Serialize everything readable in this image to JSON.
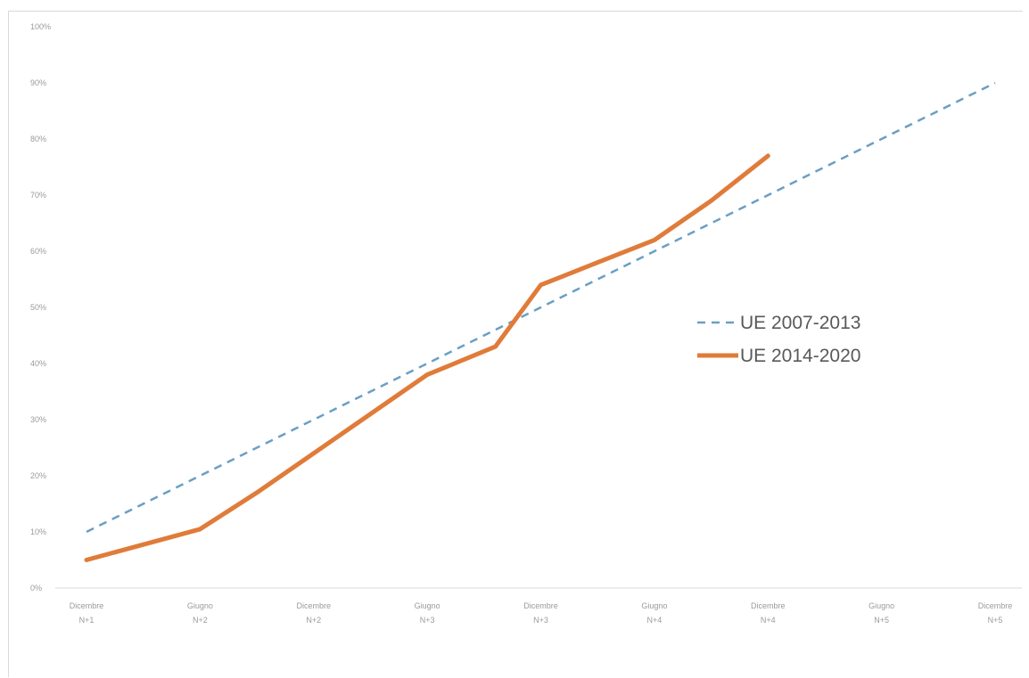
{
  "chart_data": {
    "type": "line",
    "categories": [
      [
        "Dicembre",
        "N+1"
      ],
      [
        "Giugno",
        "N+2"
      ],
      [
        "Dicembre",
        "N+2"
      ],
      [
        "Giugno",
        "N+3"
      ],
      [
        "Dicembre",
        "N+3"
      ],
      [
        "Giugno",
        "N+4"
      ],
      [
        "Dicembre",
        "N+4"
      ],
      [
        "Giugno",
        "N+5"
      ],
      [
        "Dicembre",
        "N+5"
      ]
    ],
    "y_ticks": [
      "0%",
      "10%",
      "20%",
      "30%",
      "40%",
      "50%",
      "60%",
      "70%",
      "80%",
      "90%",
      "100%"
    ],
    "ylim": [
      0,
      100
    ],
    "grid": false,
    "legend_position": "right",
    "series": [
      {
        "name": "UE 2007-2013",
        "color": "#6a9fc4",
        "style": "dashed",
        "points": [
          [
            0,
            10
          ],
          [
            1,
            20
          ],
          [
            2,
            30
          ],
          [
            3,
            40
          ],
          [
            4,
            50
          ],
          [
            5,
            60
          ],
          [
            6,
            70
          ],
          [
            7,
            80
          ],
          [
            8,
            90
          ]
        ]
      },
      {
        "name": "UE 2014-2020",
        "color": "#e07b39",
        "style": "solid",
        "points": [
          [
            0,
            5
          ],
          [
            1,
            10.5
          ],
          [
            1.5,
            17
          ],
          [
            2,
            24
          ],
          [
            3,
            38
          ],
          [
            3.6,
            43
          ],
          [
            4,
            54
          ],
          [
            4.5,
            58
          ],
          [
            5,
            62
          ],
          [
            5.5,
            69
          ],
          [
            6,
            77
          ]
        ]
      }
    ]
  }
}
